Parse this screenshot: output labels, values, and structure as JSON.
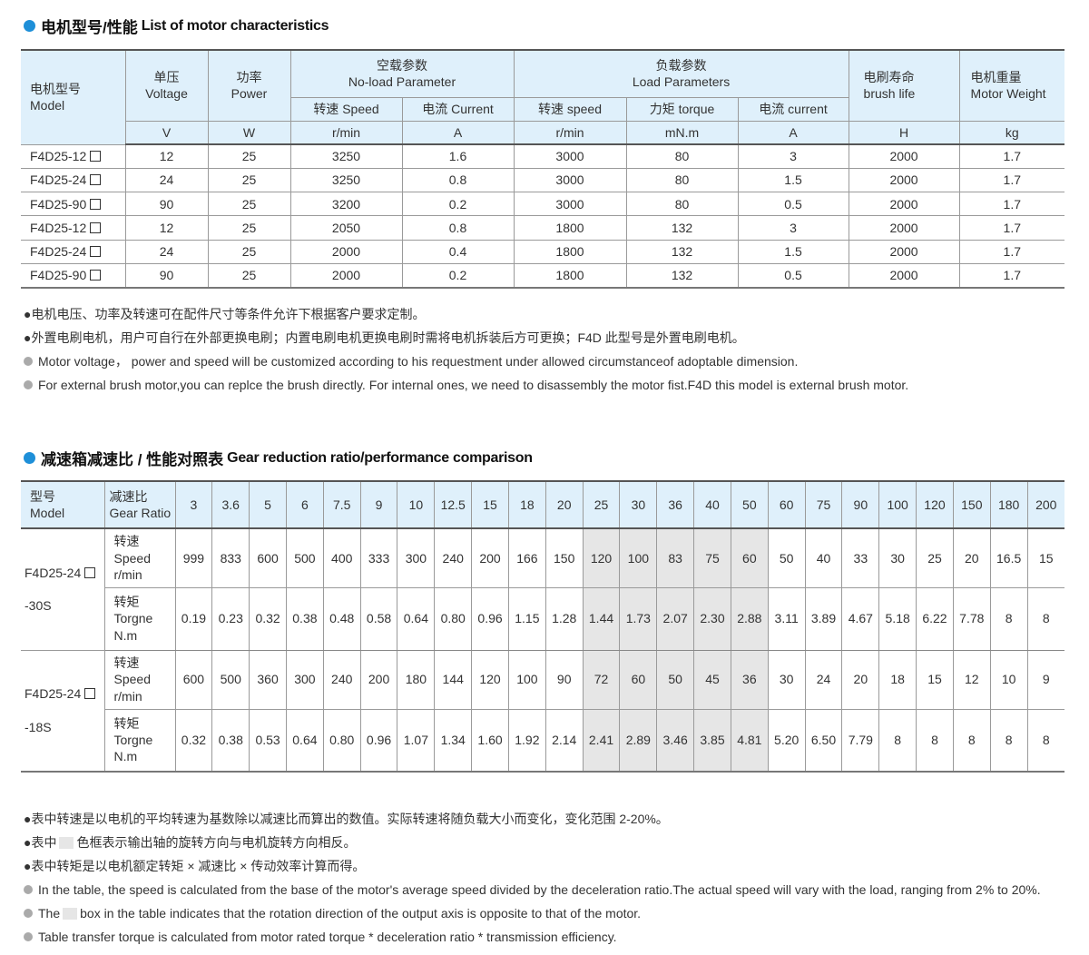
{
  "section1": {
    "title_cn": "电机型号/性能",
    "title_en": "List of motor characteristics",
    "accent": "#1e8fd8",
    "headers": {
      "model": [
        "电机型号",
        "Model"
      ],
      "voltage": [
        "单压",
        "Voltage"
      ],
      "power": [
        "功率",
        "Power"
      ],
      "noload": [
        "空载参数",
        "No-load Parameter"
      ],
      "load": [
        "负载参数",
        "Load Parameters"
      ],
      "brush": [
        "电刷寿命",
        "brush life"
      ],
      "weight": [
        "电机重量",
        "Motor Weight"
      ],
      "noload_sub": [
        "转速 Speed",
        "电流 Current"
      ],
      "load_sub": [
        "转速 speed",
        "力矩 torque",
        "电流 current"
      ],
      "units": [
        "V",
        "W",
        "r/min",
        "A",
        "r/min",
        "mN.m",
        "A",
        "H",
        "kg"
      ]
    },
    "rows": [
      [
        "F4D25-12",
        "12",
        "25",
        "3250",
        "1.6",
        "3000",
        "80",
        "3",
        "2000",
        "1.7"
      ],
      [
        "F4D25-24",
        "24",
        "25",
        "3250",
        "0.8",
        "3000",
        "80",
        "1.5",
        "2000",
        "1.7"
      ],
      [
        "F4D25-90",
        "90",
        "25",
        "3200",
        "0.2",
        "3000",
        "80",
        "0.5",
        "2000",
        "1.7"
      ],
      [
        "F4D25-12",
        "12",
        "25",
        "2050",
        "0.8",
        "1800",
        "132",
        "3",
        "2000",
        "1.7"
      ],
      [
        "F4D25-24",
        "24",
        "25",
        "2000",
        "0.4",
        "1800",
        "132",
        "1.5",
        "2000",
        "1.7"
      ],
      [
        "F4D25-90",
        "90",
        "25",
        "2000",
        "0.2",
        "1800",
        "132",
        "0.5",
        "2000",
        "1.7"
      ]
    ],
    "notes": [
      "●电机电压、功率及转速可在配件尺寸等条件允许下根据客户要求定制。",
      "●外置电刷电机，用户可自行在外部更换电刷；内置电刷电机更换电刷时需将电机拆装后方可更换；F4D 此型号是外置电刷电机。",
      "Motor voltage， power and speed will be customized according to his requestment under allowed circumstanceof adoptable dimension.",
      "For external brush motor,you can replce the brush directly. For internal ones, we need to disassembly the motor fist.F4D this model is external brush motor."
    ]
  },
  "section2": {
    "title_cn": "减速箱减速比 / 性能对照表",
    "title_en": "Gear reduction ratio/performance comparison",
    "model_header": [
      "型号",
      "Model"
    ],
    "ratio_header": [
      "减速比",
      "Gear Ratio"
    ],
    "ratios": [
      "3",
      "3.6",
      "5",
      "6",
      "7.5",
      "9",
      "10",
      "12.5",
      "15",
      "18",
      "20",
      "25",
      "30",
      "36",
      "40",
      "50",
      "60",
      "75",
      "90",
      "100",
      "120",
      "150",
      "180",
      "200"
    ],
    "shaded_ratios": [
      "25",
      "30",
      "36",
      "40",
      "50"
    ],
    "shade_color": "#e6e6e6",
    "speed_label": [
      "转速",
      "Speed",
      "r/min"
    ],
    "torque_label": [
      "转矩",
      "Torgne",
      "N.m"
    ],
    "groups": [
      {
        "model": [
          "F4D25-24",
          "-30S"
        ],
        "speed": [
          "999",
          "833",
          "600",
          "500",
          "400",
          "333",
          "300",
          "240",
          "200",
          "166",
          "150",
          "120",
          "100",
          "83",
          "75",
          "60",
          "50",
          "40",
          "33",
          "30",
          "25",
          "20",
          "16.5",
          "15"
        ],
        "torque": [
          "0.19",
          "0.23",
          "0.32",
          "0.38",
          "0.48",
          "0.58",
          "0.64",
          "0.80",
          "0.96",
          "1.15",
          "1.28",
          "1.44",
          "1.73",
          "2.07",
          "2.30",
          "2.88",
          "3.11",
          "3.89",
          "4.67",
          "5.18",
          "6.22",
          "7.78",
          "8",
          "8"
        ]
      },
      {
        "model": [
          "F4D25-24",
          "-18S"
        ],
        "speed": [
          "600",
          "500",
          "360",
          "300",
          "240",
          "200",
          "180",
          "144",
          "120",
          "100",
          "90",
          "72",
          "60",
          "50",
          "45",
          "36",
          "30",
          "24",
          "20",
          "18",
          "15",
          "12",
          "10",
          "9"
        ],
        "torque": [
          "0.32",
          "0.38",
          "0.53",
          "0.64",
          "0.80",
          "0.96",
          "1.07",
          "1.34",
          "1.60",
          "1.92",
          "2.14",
          "2.41",
          "2.89",
          "3.46",
          "3.85",
          "4.81",
          "5.20",
          "6.50",
          "7.79",
          "8",
          "8",
          "8",
          "8",
          "8"
        ]
      }
    ],
    "notes": [
      "●表中转速是以电机的平均转速为基数除以减速比而算出的数值。实际转速将随负载大小而变化，变化范围 2-20%。",
      [
        "●表中",
        "色框表示输出轴的旋转方向与电机旋转方向相反。"
      ],
      "●表中转矩是以电机额定转矩 × 减速比 × 传动效率计算而得。",
      "In the table, the speed is calculated from the base of the motor's average speed  divided by the deceleration ratio.The actual speed will vary with the load, ranging from 2% to 20%.",
      [
        "The",
        "box in the table indicates that the rotation direction of the output axis is opposite to that of the motor."
      ],
      "Table transfer torque is calculated from motor rated torque * deceleration ratio * transmission efficiency."
    ]
  }
}
